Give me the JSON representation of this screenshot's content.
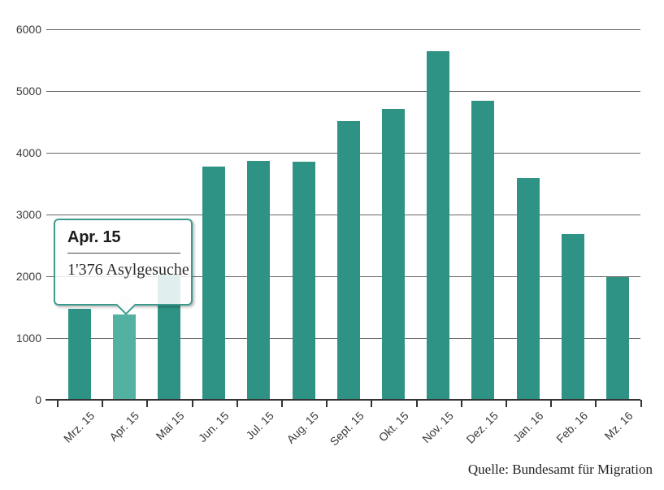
{
  "chart_data": {
    "type": "bar",
    "title": "",
    "xlabel": "",
    "ylabel": "",
    "categories": [
      "Mrz. 15",
      "Apr. 15",
      "Mai 15",
      "Jun. 15",
      "Jul. 15",
      "Aug. 15",
      "Sept. 15",
      "Okt. 15",
      "Nov. 15",
      "Dez. 15",
      "Jan. 16",
      "Feb. 16",
      "Mz. 16"
    ],
    "values": [
      1470,
      1376,
      2030,
      3780,
      3870,
      3860,
      4515,
      4710,
      5650,
      4840,
      3590,
      2690,
      1990
    ],
    "highlighted_index": 1,
    "ylim": [
      0,
      6000
    ],
    "ytick_interval": 1000,
    "ytick_labels": [
      "0",
      "1000",
      "2000",
      "3000",
      "4000",
      "5000",
      "6000"
    ],
    "grid": "horizontal",
    "legend": "none",
    "colors": {
      "bar": "#2e9384",
      "bar_highlight": "#52b1a1",
      "gridline": "#666666",
      "axis": "#333333",
      "tick_label": "#3a3a3a"
    }
  },
  "tooltip": {
    "title": "Apr. 15",
    "value": 1376,
    "value_text": "1'376 Asylgesuche",
    "border_color": "#3c9a8d"
  },
  "footer": {
    "source": "Quelle: Bundesamt für Migration"
  }
}
